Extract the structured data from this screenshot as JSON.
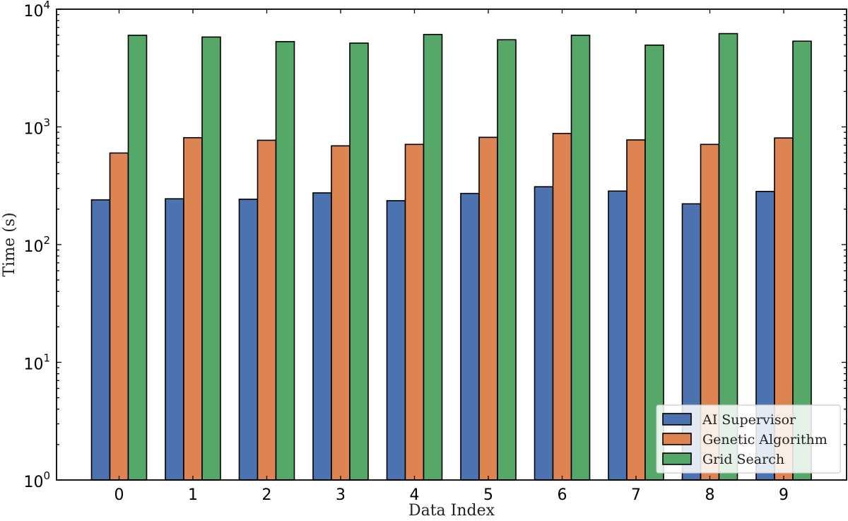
{
  "chart_data": {
    "type": "bar",
    "title": "",
    "xlabel": "Data Index",
    "ylabel": "Time (s)",
    "yscale": "log",
    "ylim": [
      1,
      10000
    ],
    "grid": false,
    "legend_position": "bottom-right",
    "categories": [
      "0",
      "1",
      "2",
      "3",
      "4",
      "5",
      "6",
      "7",
      "8",
      "9"
    ],
    "y_ticks": [
      {
        "base": "10",
        "exp": "0",
        "value": 1
      },
      {
        "base": "10",
        "exp": "1",
        "value": 10
      },
      {
        "base": "10",
        "exp": "2",
        "value": 100
      },
      {
        "base": "10",
        "exp": "3",
        "value": 1000
      },
      {
        "base": "10",
        "exp": "4",
        "value": 10000
      }
    ],
    "series": [
      {
        "name": "AI Supervisor",
        "color": "#4c72b0",
        "values": [
          240,
          245,
          243,
          275,
          236,
          272,
          310,
          285,
          222,
          283
        ]
      },
      {
        "name": "Genetic Algorithm",
        "color": "#dd8452",
        "values": [
          600,
          810,
          770,
          690,
          710,
          815,
          880,
          775,
          710,
          805
        ]
      },
      {
        "name": "Grid Search",
        "color": "#55a868",
        "values": [
          6000,
          5800,
          5300,
          5150,
          6100,
          5500,
          6000,
          4950,
          6200,
          5350
        ]
      }
    ]
  }
}
